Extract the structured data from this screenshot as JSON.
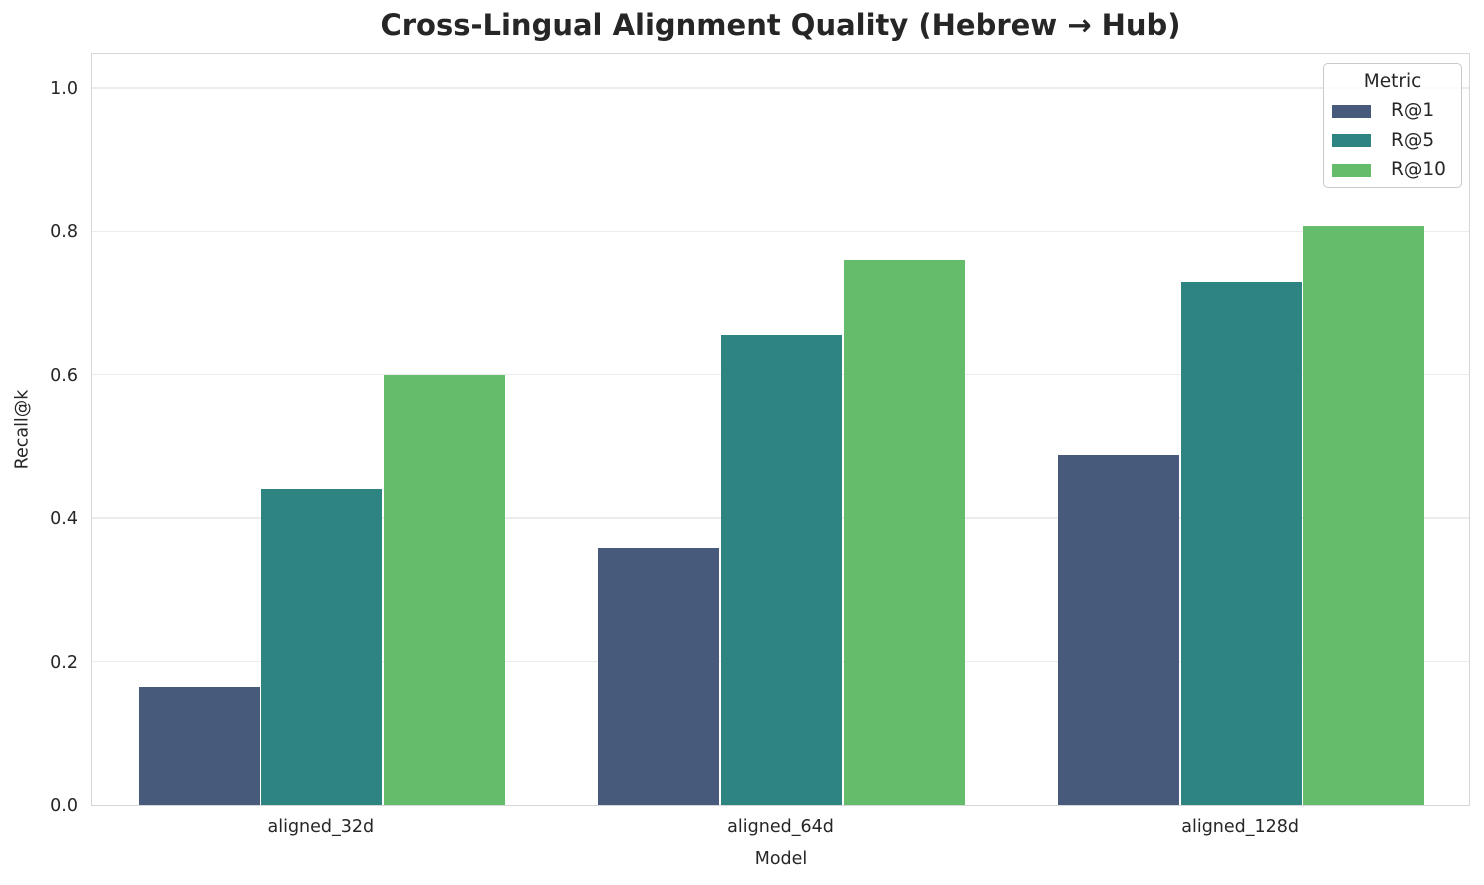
{
  "chart": {
    "title": "Cross-Lingual Alignment Quality (Hebrew → Hub)",
    "xlabel": "Model",
    "ylabel": "Recall@k",
    "legend_title": "Metric"
  },
  "chart_data": {
    "type": "bar",
    "title": "Cross-Lingual Alignment Quality (Hebrew → Hub)",
    "xlabel": "Model",
    "ylabel": "Recall@k",
    "categories": [
      "aligned_32d",
      "aligned_64d",
      "aligned_128d"
    ],
    "series": [
      {
        "name": "R@1",
        "color": "#475a7c",
        "values": [
          0.165,
          0.358,
          0.488
        ]
      },
      {
        "name": "R@5",
        "color": "#2e8481",
        "values": [
          0.44,
          0.655,
          0.73
        ]
      },
      {
        "name": "R@10",
        "color": "#65bd6b",
        "values": [
          0.6,
          0.76,
          0.808
        ]
      }
    ],
    "ylim": [
      0,
      1.05
    ],
    "yticks": [
      0.0,
      0.2,
      0.4,
      0.6,
      0.8,
      1.0
    ],
    "ytick_labels": [
      "0.0",
      "0.2",
      "0.4",
      "0.6",
      "0.8",
      "1.0"
    ],
    "grid": "horizontal",
    "legend": {
      "title": "Metric",
      "position": "upper right"
    }
  },
  "colors": {
    "text": "#262626",
    "grid": "#ececec",
    "spine": "#d6d6d6",
    "background": "#ffffff",
    "legend_border": "#c9c9c9"
  }
}
